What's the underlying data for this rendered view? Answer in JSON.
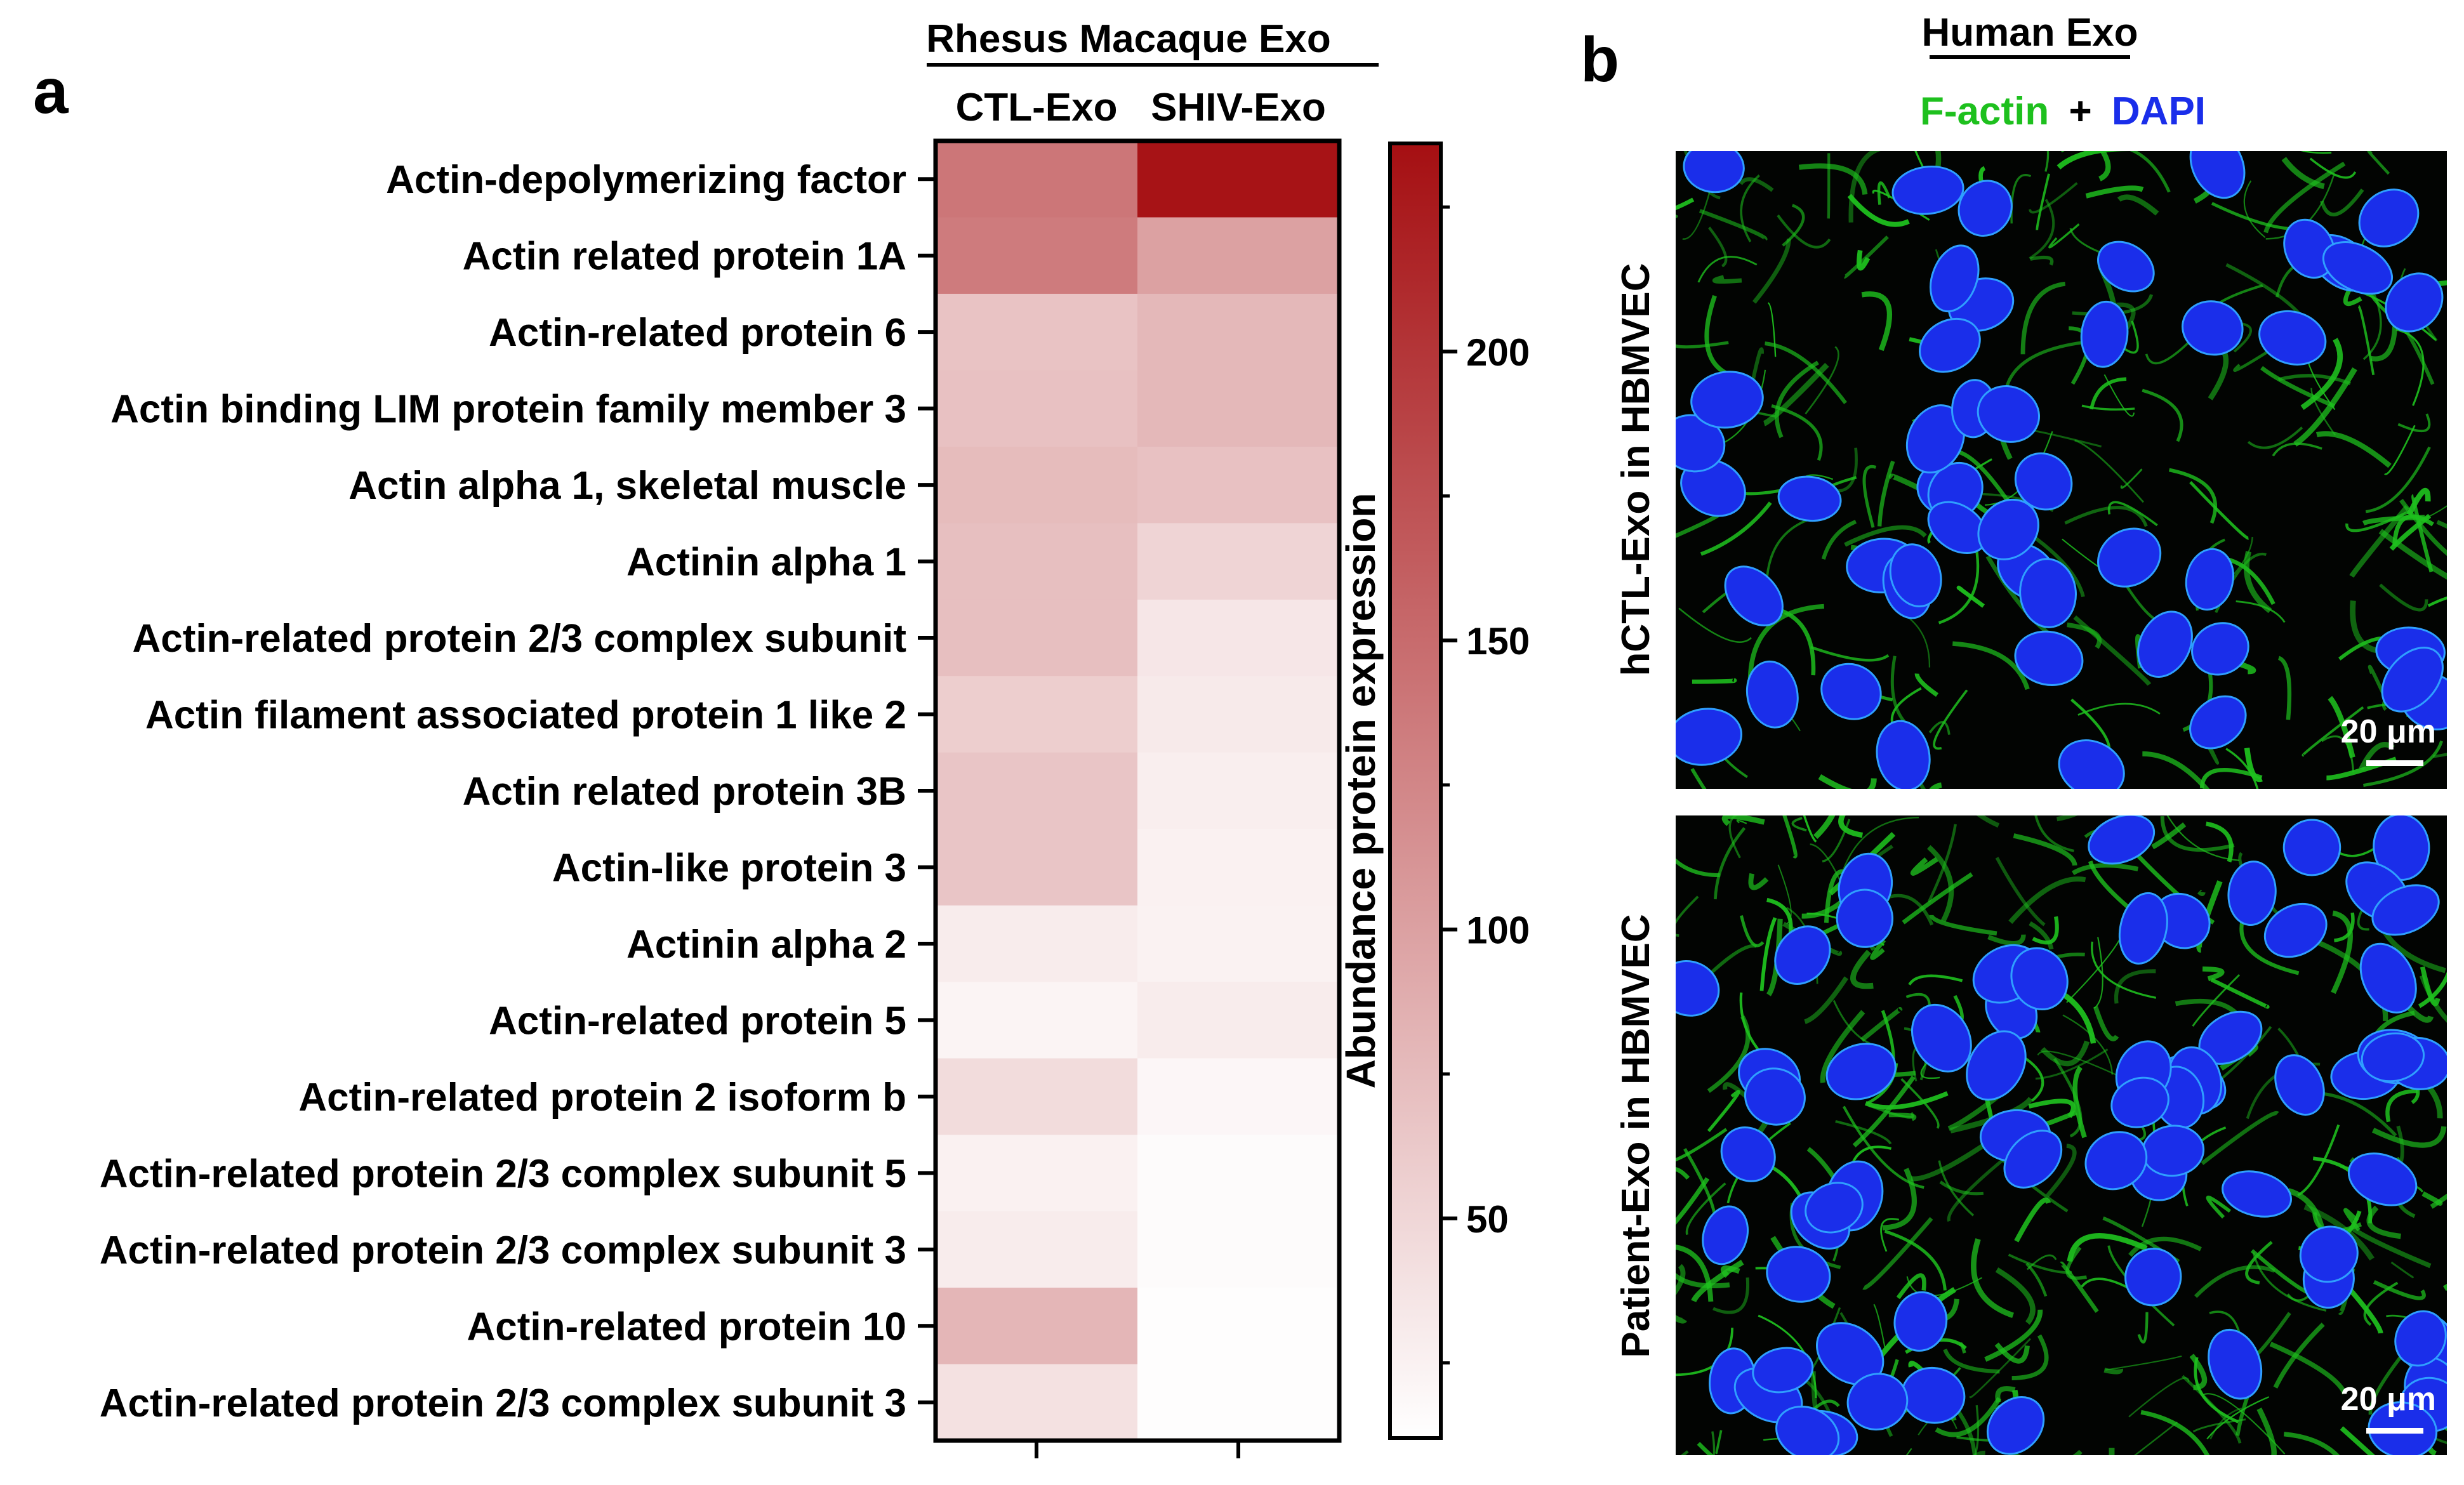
{
  "chart_data": {
    "type": "heatmap",
    "panel_a": {
      "panel_label": "a",
      "group_title": "Rhesus Macaque Exo",
      "columns": [
        "CTL-Exo",
        "SHIV-Exo"
      ],
      "rows": [
        "Actin-depolymerizing factor",
        "Actin related protein 1A",
        "Actin-related protein 6",
        "Actin binding LIM protein family member 3",
        "Actin alpha 1, skeletal muscle",
        "Actinin alpha 1",
        "Actin-related protein 2/3 complex subunit",
        "Actin filament associated protein 1 like 2",
        "Actin related protein 3B",
        "Actin-like protein 3",
        "Actinin alpha 2",
        "Actin-related protein 5",
        "Actin-related protein 2 isoform b",
        "Actin-related protein 2/3 complex subunit 5",
        "Actin-related protein 2/3 complex subunit 3",
        "Actin-related protein 10",
        "Actin-related protein 2/3 complex subunit 3"
      ],
      "values": [
        [
          140,
          232
        ],
        [
          135,
          100
        ],
        [
          68,
          78
        ],
        [
          70,
          78
        ],
        [
          75,
          70
        ],
        [
          72,
          52
        ],
        [
          72,
          35
        ],
        [
          58,
          32
        ],
        [
          66,
          28
        ],
        [
          66,
          25
        ],
        [
          30,
          24
        ],
        [
          22,
          30
        ],
        [
          45,
          20
        ],
        [
          25,
          16
        ],
        [
          30,
          16
        ],
        [
          80,
          14
        ],
        [
          40,
          14
        ]
      ],
      "colorbar": {
        "label": "Abundance protein expression",
        "range": [
          12,
          236
        ],
        "ticks": [
          50,
          100,
          150,
          200
        ],
        "color_low": "#ffffff",
        "color_high": "#a50f12"
      }
    },
    "panel_b": {
      "panel_label": "b",
      "group_title": "Human Exo",
      "stain_a": "F-actin",
      "stain_plus": "+",
      "stain_b": "DAPI",
      "stain_a_color": "#1ec01e",
      "stain_b_color": "#1a2eea",
      "images": [
        {
          "label": "hCTL-Exo in HBMVEC",
          "scale_bar": "20 μm"
        },
        {
          "label": "Patient-Exo in HBMVEC",
          "scale_bar": "20 μm"
        }
      ]
    }
  }
}
